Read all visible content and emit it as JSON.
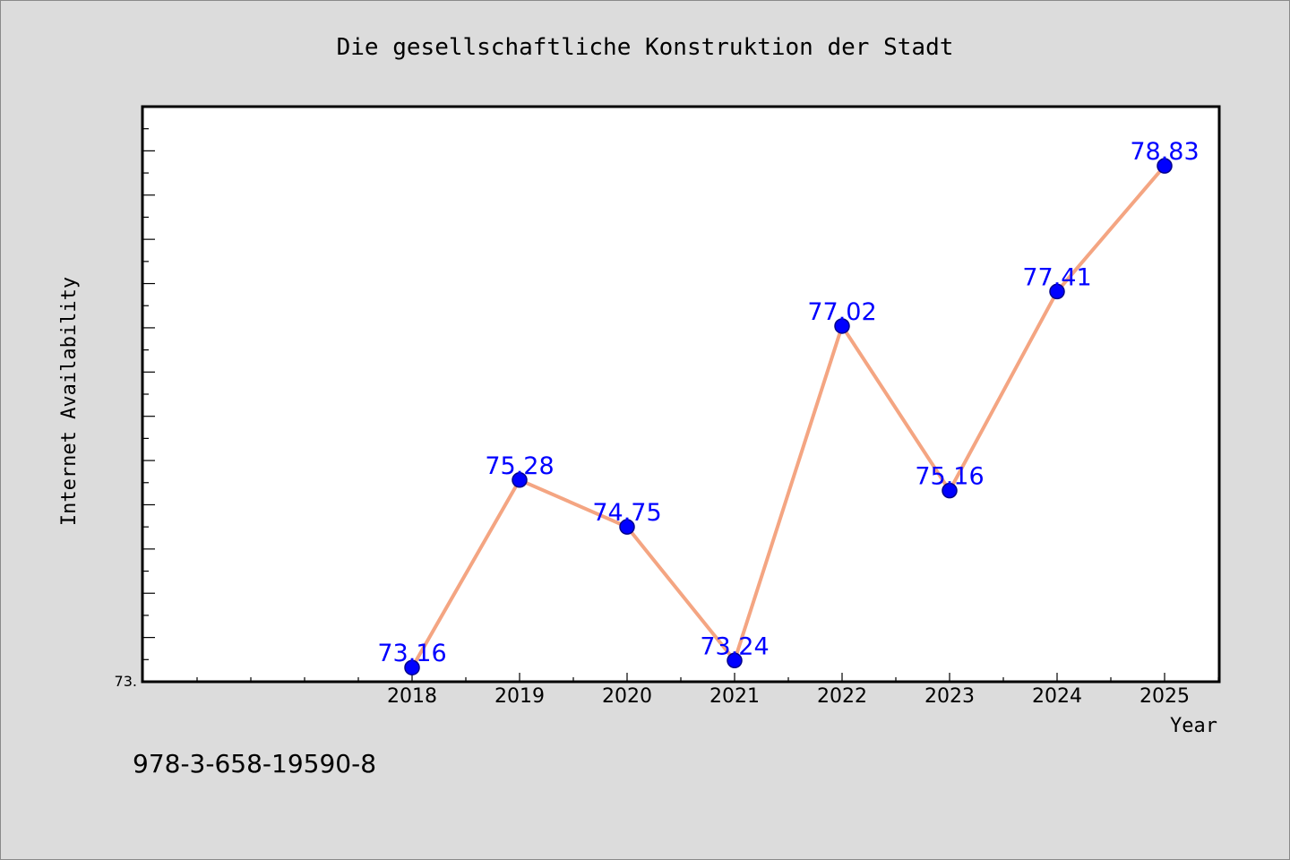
{
  "chart_data": {
    "type": "line",
    "title": "Die gesellschaftliche Konstruktion der Stadt",
    "xlabel": "Year",
    "ylabel": "Internet Availability",
    "x": [
      "2018",
      "2019",
      "2020",
      "2021",
      "2022",
      "2023",
      "2024",
      "2025"
    ],
    "series": [
      {
        "values": [
          73.16,
          75.28,
          74.75,
          73.24,
          77.02,
          75.16,
          77.41,
          78.83
        ],
        "labels": [
          "73.16",
          "75.28",
          "74.75",
          "73.24",
          "77.02",
          "75.16",
          "77.41",
          "78.83"
        ]
      }
    ],
    "ylim": [
      73.0,
      79.5
    ],
    "y_tick_label": "73.",
    "grid": false,
    "colors": {
      "line": "#f4a582",
      "marker": "#0000ff",
      "marker_edge": "#00008b",
      "label": "#0000ff",
      "background": "#dcdcdc",
      "plot_bg": "#ffffff"
    }
  },
  "footer": {
    "isbn": "978-3-658-19590-8"
  }
}
